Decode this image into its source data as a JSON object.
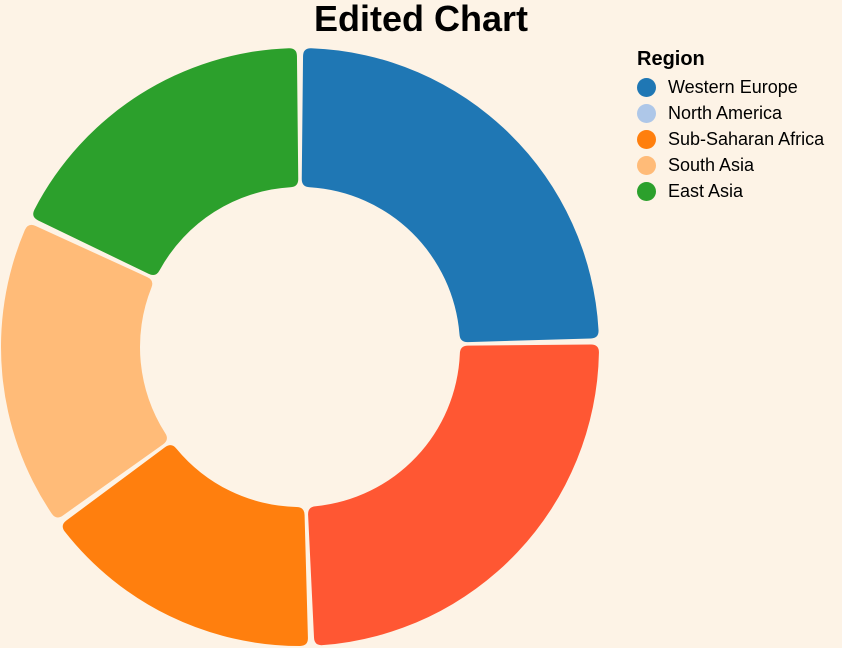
{
  "chart_data": {
    "type": "pie",
    "title": "Edited Chart",
    "donut": true,
    "legend": {
      "title": "Region",
      "position": "top-right"
    },
    "categories": [
      "Western Europe",
      "North America",
      "Sub-Saharan Africa",
      "South Asia",
      "East Asia"
    ],
    "slices": [
      {
        "label": "Western Europe",
        "value": 24.7,
        "color": "#1f77b4"
      },
      {
        "label": "North America",
        "value": 24.7,
        "color": "#ff5733"
      },
      {
        "label": "Sub-Saharan Africa",
        "value": 15.6,
        "color": "#ff7f0e"
      },
      {
        "label": "South Asia",
        "value": 17.0,
        "color": "#ffbb78"
      },
      {
        "label": "East Asia",
        "value": 18.0,
        "color": "#2ca02c"
      }
    ],
    "legend_colors": [
      "#1f77b4",
      "#aec7e8",
      "#ff7f0e",
      "#ffbb78",
      "#2ca02c"
    ],
    "background": "#fdf3e6"
  }
}
